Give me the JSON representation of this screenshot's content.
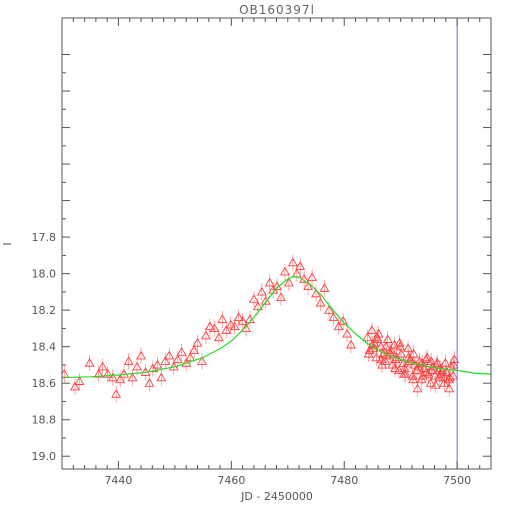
{
  "chart_data": {
    "type": "scatter",
    "title": "OB160397l",
    "xlabel": "JD - 2450000",
    "ylabel": "I",
    "xlim": [
      7430,
      7506
    ],
    "ylim": [
      19.07,
      16.6
    ],
    "y_inverted": true,
    "grid": false,
    "xticks": [
      7440,
      7460,
      7480,
      7500
    ],
    "yticks": [
      17.8,
      18.0,
      18.2,
      18.4,
      18.6,
      18.8,
      19.0
    ],
    "ytick_labels": [
      "17.8",
      "18.0",
      "18.2",
      "18.4",
      "18.6",
      "18.8",
      "19.0"
    ],
    "vertical_line": {
      "x": 7500,
      "color": "#6a6af0"
    },
    "model": {
      "name": "",
      "color": "#22dd22",
      "x": [
        7430,
        7435,
        7440,
        7445,
        7450,
        7455,
        7458,
        7460,
        7462,
        7464,
        7466,
        7468,
        7470,
        7471,
        7472,
        7474,
        7476,
        7478,
        7480,
        7482,
        7484,
        7486,
        7488,
        7490,
        7492,
        7495,
        7498,
        7500,
        7503,
        7506
      ],
      "y": [
        18.57,
        18.565,
        18.555,
        18.54,
        18.51,
        18.46,
        18.41,
        18.37,
        18.31,
        18.24,
        18.16,
        18.08,
        18.03,
        18.015,
        18.02,
        18.06,
        18.12,
        18.2,
        18.27,
        18.33,
        18.38,
        18.42,
        18.45,
        18.47,
        18.49,
        18.51,
        18.525,
        18.53,
        18.545,
        18.55
      ]
    },
    "series": [
      {
        "marker": "triangle",
        "color": "#ff4040",
        "x": [
          7430.4,
          7432.3,
          7433.1,
          7434.9,
          7436.5,
          7437.2,
          7438.1,
          7439.0,
          7439.6,
          7440.3,
          7441.0,
          7441.8,
          7442.5,
          7443.3,
          7444.0,
          7444.8,
          7445.5,
          7446.1,
          7446.9,
          7447.6,
          7448.3,
          7449.0,
          7449.8,
          7450.5,
          7451.2,
          7452.0,
          7452.7,
          7453.4,
          7454.0,
          7454.8,
          7455.5,
          7456.2,
          7457.0,
          7457.8,
          7458.4,
          7459.1,
          7459.9,
          7460.6,
          7461.3,
          7462.0,
          7462.6,
          7463.3,
          7464.0,
          7464.7,
          7465.4,
          7466.1,
          7466.8,
          7467.4,
          7468.1,
          7468.8,
          7469.5,
          7470.2,
          7470.9,
          7471.6,
          7472.2,
          7472.9,
          7473.6,
          7474.3,
          7475.0,
          7475.8,
          7476.5,
          7477.3,
          7478.1,
          7479.0,
          7479.8,
          7480.5,
          7481.2,
          7484.1,
          7484.5,
          7484.9,
          7485.3,
          7485.7,
          7486.1,
          7486.5,
          7486.9,
          7487.3,
          7487.7,
          7488.1,
          7488.5,
          7488.9,
          7489.3,
          7489.7,
          7490.1,
          7490.5,
          7490.9,
          7491.3,
          7491.7,
          7492.1,
          7492.5,
          7492.9,
          7493.3,
          7493.7,
          7494.1,
          7494.5,
          7494.9,
          7495.3,
          7495.7,
          7496.1,
          7496.5,
          7496.9,
          7497.3,
          7497.7,
          7498.1,
          7498.5,
          7498.9,
          7499.3,
          7485.0,
          7485.8,
          7486.6,
          7487.4,
          7488.2,
          7489.0,
          7489.8,
          7490.6,
          7491.4,
          7492.2,
          7493.0,
          7493.8,
          7494.6,
          7495.4,
          7496.2,
          7497.0,
          7497.8,
          7498.6,
          7499.4,
          7484.3,
          7485.1,
          7485.9,
          7486.7,
          7487.5,
          7488.3,
          7489.1,
          7489.9,
          7490.7,
          7491.5,
          7492.3,
          7493.1,
          7493.9,
          7494.7,
          7495.5,
          7496.3,
          7497.1,
          7497.9,
          7498.7,
          7499.5
        ],
        "y": [
          18.55,
          18.62,
          18.59,
          18.49,
          18.55,
          18.51,
          18.55,
          18.57,
          18.66,
          18.58,
          18.55,
          18.48,
          18.57,
          18.51,
          18.45,
          18.54,
          18.6,
          18.52,
          18.5,
          18.57,
          18.48,
          18.45,
          18.51,
          18.47,
          18.43,
          18.49,
          18.46,
          18.42,
          18.38,
          18.48,
          18.34,
          18.29,
          18.3,
          18.35,
          18.25,
          18.31,
          18.28,
          18.29,
          18.24,
          18.26,
          18.3,
          18.25,
          18.14,
          18.18,
          18.1,
          18.15,
          18.05,
          18.09,
          18.07,
          18.13,
          17.99,
          18.05,
          17.94,
          18.0,
          17.96,
          18.03,
          18.07,
          18.02,
          18.11,
          18.16,
          18.08,
          18.2,
          18.24,
          18.29,
          18.26,
          18.33,
          18.39,
          18.35,
          18.42,
          18.31,
          18.38,
          18.46,
          18.33,
          18.4,
          18.44,
          18.48,
          18.36,
          18.43,
          18.5,
          18.39,
          18.46,
          18.53,
          18.44,
          18.49,
          18.55,
          18.41,
          18.47,
          18.56,
          18.5,
          18.53,
          18.48,
          18.58,
          18.52,
          18.47,
          18.55,
          18.6,
          18.51,
          18.56,
          18.49,
          18.57,
          18.53,
          18.6,
          18.54,
          18.58,
          18.51,
          18.56,
          18.39,
          18.35,
          18.47,
          18.4,
          18.44,
          18.52,
          18.38,
          18.55,
          18.46,
          18.58,
          18.63,
          18.49,
          18.54,
          18.48,
          18.61,
          18.52,
          18.57,
          18.63,
          18.5,
          18.44,
          18.41,
          18.36,
          18.5,
          18.45,
          18.42,
          18.47,
          18.4,
          18.52,
          18.48,
          18.44,
          18.51,
          18.56,
          18.46,
          18.53,
          18.5,
          18.55,
          18.49,
          18.57,
          18.47
        ],
        "yerr": 0.045
      }
    ]
  }
}
